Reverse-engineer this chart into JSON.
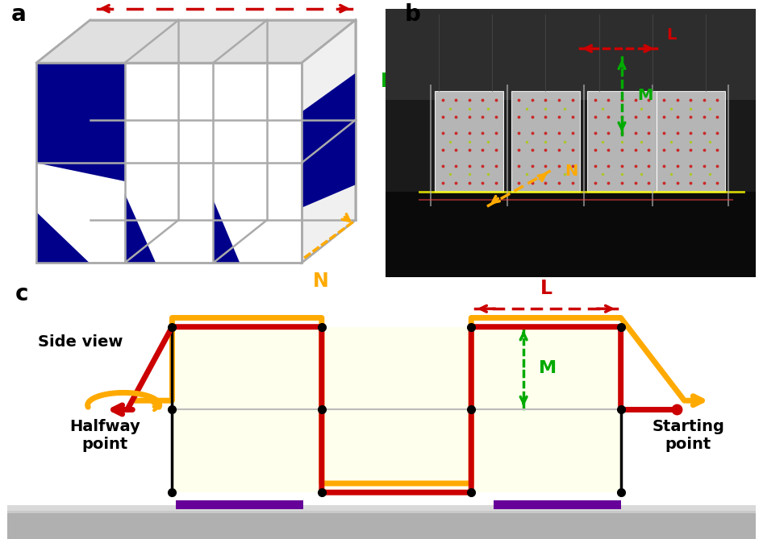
{
  "panel_a_label": "a",
  "panel_b_label": "b",
  "panel_c_label": "c",
  "L_label": "L",
  "M_label": "M",
  "N_label": "N",
  "side_view_label": "Side view",
  "halfway_label": "Halfway\npoint",
  "starting_label": "Starting\npoint",
  "red_color": "#cc0000",
  "green_color": "#00aa00",
  "orange_color": "#ffaa00",
  "yellow_bg": "#ffffee",
  "navy_blue": "#00008B",
  "purple_bar": "#660099",
  "frame_color": "#aaaaaa"
}
